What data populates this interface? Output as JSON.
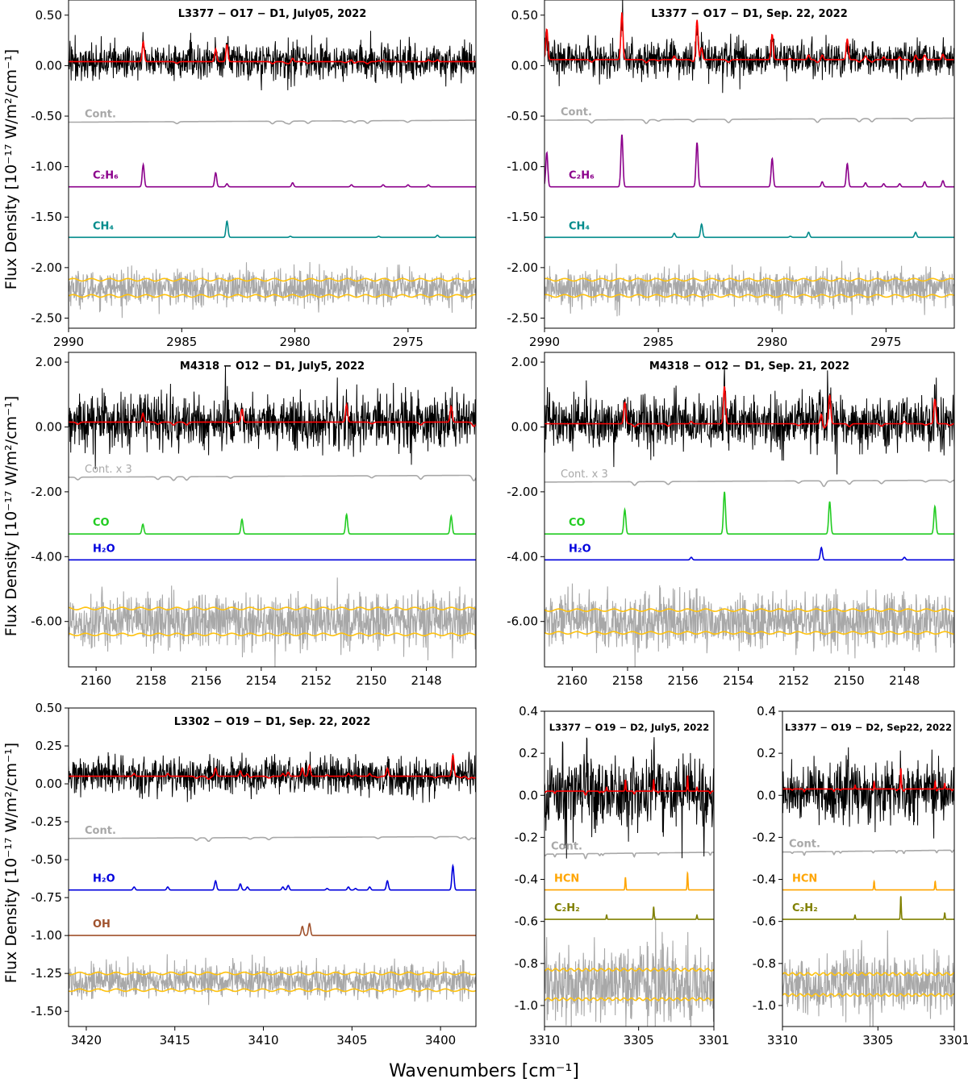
{
  "figure": {
    "xlabel": "Wavenumbers [cm⁻¹]",
    "ylabel": "Flux Density [10⁻¹⁷ W/m²/cm⁻¹]"
  },
  "colors": {
    "data": "#000000",
    "model": "#ff0000",
    "continuum": "#a8a8a8",
    "residual": "#a8a8a8",
    "sigma": "#ffc20e",
    "C2H6": "#8b008b",
    "CH4": "#008b8b",
    "CO": "#22cc22",
    "H2O": "#0000dd",
    "OH": "#a0522d",
    "HCN": "#ffa500",
    "C2H2": "#808000"
  },
  "chart_data": [
    {
      "type": "line",
      "title": "L3377 − O17 − D1, July05, 2022",
      "xlim": [
        2990,
        2972
      ],
      "ylim": [
        -2.6,
        0.65
      ],
      "xticks": [
        2990,
        2985,
        2980,
        2975
      ],
      "xtick_labels": [
        "2990",
        "2985",
        "2980",
        "2975"
      ],
      "yticks": [
        0.5,
        0.0,
        -0.5,
        -1.0,
        -1.5,
        -2.0,
        -2.5
      ],
      "ytick_labels": [
        "0.50",
        "0.00",
        "-0.50",
        "-1.00",
        "-1.50",
        "-2.00",
        "-2.50"
      ],
      "show_ylabel": true,
      "data": {
        "offset": 0.04,
        "noise": 0.09
      },
      "model": {
        "offset": 0.04
      },
      "continuum": {
        "label": "Cont.",
        "offset": -0.56
      },
      "residual": {
        "offset": -2.2,
        "noise": 0.085,
        "sigma_upper": -2.12,
        "sigma_lower": -2.28
      },
      "components": [
        {
          "name": "C2H6",
          "label": "C₂H₆",
          "color_key": "C2H6",
          "offset": -1.2,
          "lines": [
            [
              2986.7,
              0.22
            ],
            [
              2983.5,
              0.14
            ],
            [
              2983.0,
              0.03
            ],
            [
              2980.1,
              0.04
            ],
            [
              2977.5,
              0.02
            ],
            [
              2976.1,
              0.02
            ],
            [
              2975.0,
              0.02
            ],
            [
              2974.1,
              0.02
            ]
          ]
        },
        {
          "name": "CH4",
          "label": "CH₄",
          "color_key": "CH4",
          "offset": -1.7,
          "lines": [
            [
              2983.0,
              0.16
            ],
            [
              2980.2,
              0.01
            ],
            [
              2976.3,
              0.01
            ],
            [
              2973.7,
              0.02
            ]
          ]
        }
      ]
    },
    {
      "type": "line",
      "title": "L3377 − O17 − D1, Sep. 22, 2022",
      "xlim": [
        2990,
        2972
      ],
      "ylim": [
        -2.6,
        0.65
      ],
      "xticks": [
        2990,
        2985,
        2980,
        2975
      ],
      "xtick_labels": [
        "2990",
        "2985",
        "2980",
        "2975"
      ],
      "yticks": [
        0.5,
        0.0,
        -0.5,
        -1.0,
        -1.5,
        -2.0,
        -2.5
      ],
      "ytick_labels": [
        "0.50",
        "0.00",
        "-0.50",
        "-1.00",
        "-1.50",
        "-2.00",
        "-2.50"
      ],
      "show_ylabel": false,
      "data": {
        "offset": 0.06,
        "noise": 0.09
      },
      "model": {
        "offset": 0.06
      },
      "continuum": {
        "label": "Cont.",
        "offset": -0.54
      },
      "residual": {
        "offset": -2.2,
        "noise": 0.085,
        "sigma_upper": -2.12,
        "sigma_lower": -2.28
      },
      "components": [
        {
          "name": "C2H6",
          "label": "C₂H₆",
          "color_key": "C2H6",
          "offset": -1.2,
          "lines": [
            [
              2989.9,
              0.34
            ],
            [
              2986.6,
              0.52
            ],
            [
              2983.3,
              0.44
            ],
            [
              2980.0,
              0.28
            ],
            [
              2977.8,
              0.05
            ],
            [
              2976.7,
              0.23
            ],
            [
              2975.9,
              0.04
            ],
            [
              2975.1,
              0.03
            ],
            [
              2974.4,
              0.03
            ],
            [
              2973.3,
              0.05
            ],
            [
              2972.5,
              0.06
            ]
          ]
        },
        {
          "name": "CH4",
          "label": "CH₄",
          "color_key": "CH4",
          "offset": -1.7,
          "lines": [
            [
              2984.3,
              0.04
            ],
            [
              2983.1,
              0.13
            ],
            [
              2979.2,
              0.01
            ],
            [
              2978.4,
              0.05
            ],
            [
              2973.7,
              0.05
            ]
          ]
        }
      ]
    },
    {
      "type": "line",
      "title": "M4318 − O12 − D1, July5, 2022",
      "xlim": [
        2161,
        2146.2
      ],
      "ylim": [
        -7.4,
        2.3
      ],
      "xticks": [
        2160,
        2158,
        2156,
        2154,
        2152,
        2150,
        2148
      ],
      "xtick_labels": [
        "2160",
        "2158",
        "2156",
        "2154",
        "2152",
        "2150",
        "2148"
      ],
      "yticks": [
        2.0,
        0.0,
        -2.0,
        -4.0,
        -6.0
      ],
      "ytick_labels": [
        "2.00",
        "0.00",
        "-2.00",
        "-4.00",
        "-6.00"
      ],
      "show_ylabel": true,
      "data": {
        "offset": 0.15,
        "noise": 0.42
      },
      "model": {
        "offset": 0.15
      },
      "continuum": {
        "label": "Cont. x 3",
        "offset": -1.55
      },
      "residual": {
        "offset": -6.0,
        "noise": 0.42,
        "sigma_upper": -5.6,
        "sigma_lower": -6.4
      },
      "components": [
        {
          "name": "CO",
          "label": "CO",
          "color_key": "CO",
          "offset": -3.3,
          "lines": [
            [
              2158.3,
              0.3
            ],
            [
              2154.7,
              0.45
            ],
            [
              2150.9,
              0.6
            ],
            [
              2147.1,
              0.55
            ]
          ]
        },
        {
          "name": "H2O",
          "label": "H₂O",
          "color_key": "H2O",
          "offset": -4.1,
          "lines": []
        }
      ]
    },
    {
      "type": "line",
      "title": "M4318 − O12 − D1, Sep. 21, 2022",
      "xlim": [
        2161,
        2146.2
      ],
      "ylim": [
        -7.4,
        2.3
      ],
      "xticks": [
        2160,
        2158,
        2156,
        2154,
        2152,
        2150,
        2148
      ],
      "xtick_labels": [
        "2160",
        "2158",
        "2156",
        "2154",
        "2152",
        "2150",
        "2148"
      ],
      "yticks": [
        2.0,
        0.0,
        -2.0,
        -4.0,
        -6.0
      ],
      "ytick_labels": [
        "2.00",
        "0.00",
        "-2.00",
        "-4.00",
        "-6.00"
      ],
      "show_ylabel": false,
      "data": {
        "offset": 0.1,
        "noise": 0.42
      },
      "model": {
        "offset": 0.1
      },
      "continuum": {
        "label": "Cont. x 3",
        "offset": -1.7
      },
      "residual": {
        "offset": -6.0,
        "noise": 0.42,
        "sigma_upper": -5.65,
        "sigma_lower": -6.35
      },
      "components": [
        {
          "name": "CO",
          "label": "CO",
          "color_key": "CO",
          "offset": -3.3,
          "lines": [
            [
              2158.1,
              0.75
            ],
            [
              2154.5,
              1.3
            ],
            [
              2150.7,
              1.0
            ],
            [
              2146.9,
              0.85
            ]
          ]
        },
        {
          "name": "H2O",
          "label": "H₂O",
          "color_key": "H2O",
          "offset": -4.1,
          "lines": [
            [
              2155.7,
              0.08
            ],
            [
              2151.0,
              0.38
            ],
            [
              2148.0,
              0.08
            ]
          ]
        }
      ]
    },
    {
      "type": "line",
      "title": "L3302 − O19 − D1, Sep. 22, 2022",
      "xlim": [
        3421,
        3398
      ],
      "ylim": [
        -1.6,
        0.5
      ],
      "xticks": [
        3420,
        3415,
        3410,
        3405,
        3400
      ],
      "xtick_labels": [
        "3420",
        "3415",
        "3410",
        "3405",
        "3400"
      ],
      "yticks": [
        0.5,
        0.25,
        0.0,
        -0.25,
        -0.5,
        -0.75,
        -1.0,
        -1.25,
        -1.5
      ],
      "ytick_labels": [
        "0.50",
        "0.25",
        "0.00",
        "-0.25",
        "-0.50",
        "-0.75",
        "-1.00",
        "-1.25",
        "-1.50"
      ],
      "show_ylabel": true,
      "data": {
        "offset": 0.05,
        "noise": 0.06
      },
      "model": {
        "offset": 0.05
      },
      "continuum": {
        "label": "Cont.",
        "offset": -0.36
      },
      "residual": {
        "offset": -1.3,
        "noise": 0.055,
        "sigma_upper": -1.25,
        "sigma_lower": -1.36
      },
      "components": [
        {
          "name": "H2O",
          "label": "H₂O",
          "color_key": "H2O",
          "offset": -0.7,
          "lines": [
            [
              3417.3,
              0.02
            ],
            [
              3415.4,
              0.02
            ],
            [
              3412.7,
              0.06
            ],
            [
              3411.3,
              0.04
            ],
            [
              3410.9,
              0.02
            ],
            [
              3408.9,
              0.02
            ],
            [
              3408.6,
              0.03
            ],
            [
              3406.4,
              0.01
            ],
            [
              3405.2,
              0.02
            ],
            [
              3404.8,
              0.01
            ],
            [
              3404.0,
              0.02
            ],
            [
              3403.0,
              0.06
            ],
            [
              3399.3,
              0.16
            ]
          ]
        },
        {
          "name": "OH",
          "label": "OH",
          "color_key": "OH",
          "offset": -1.0,
          "lines": [
            [
              3407.8,
              0.06
            ],
            [
              3407.4,
              0.08
            ]
          ]
        }
      ]
    },
    {
      "type": "line",
      "title": "L3377 − O19 − D2, July5, 2022",
      "xlim": [
        3310,
        3301
      ],
      "ylim": [
        -1.1,
        0.4
      ],
      "xticks": [
        3310,
        3305,
        3301
      ],
      "xtick_labels": [
        "3310",
        "3305",
        "3301"
      ],
      "yticks": [
        0.4,
        0.2,
        0.0,
        -0.2,
        -0.4,
        -0.6,
        -0.8,
        -1.0
      ],
      "ytick_labels": [
        "0.4",
        "0.2",
        "0.0",
        "-0.2",
        "-0.4",
        "-0.6",
        "-0.8",
        "-1.0"
      ],
      "show_ylabel": false,
      "data": {
        "offset": 0.02,
        "noise": 0.09
      },
      "model": {
        "offset": 0.02
      },
      "continuum": {
        "label": "Cont.",
        "offset": -0.28
      },
      "residual": {
        "offset": -0.9,
        "noise": 0.09,
        "sigma_upper": -0.83,
        "sigma_lower": -0.97
      },
      "components": [
        {
          "name": "HCN",
          "label": "HCN",
          "color_key": "HCN",
          "offset": -0.45,
          "lines": [
            [
              3305.7,
              0.06
            ],
            [
              3302.4,
              0.08
            ]
          ]
        },
        {
          "name": "C2H2",
          "label": "C₂H₂",
          "color_key": "C2H2",
          "offset": -0.59,
          "lines": [
            [
              3306.7,
              0.02
            ],
            [
              3304.2,
              0.06
            ],
            [
              3301.9,
              0.02
            ]
          ]
        }
      ]
    },
    {
      "type": "line",
      "title": "L3377 − O19 − D2, Sep22, 2022",
      "xlim": [
        3310,
        3301
      ],
      "ylim": [
        -1.1,
        0.4
      ],
      "xticks": [
        3310,
        3305,
        3301
      ],
      "xtick_labels": [
        "3310",
        "3305",
        "3301"
      ],
      "yticks": [
        0.4,
        0.2,
        0.0,
        -0.2,
        -0.4,
        -0.6,
        -0.8,
        -1.0
      ],
      "ytick_labels": [
        "0.4",
        "0.2",
        "0.0",
        "-0.2",
        "-0.4",
        "-0.6",
        "-0.8",
        "-1.0"
      ],
      "show_ylabel": false,
      "data": {
        "offset": 0.02,
        "noise": 0.07
      },
      "model": {
        "offset": 0.03
      },
      "continuum": {
        "label": "Cont.",
        "offset": -0.27
      },
      "residual": {
        "offset": -0.9,
        "noise": 0.065,
        "sigma_upper": -0.85,
        "sigma_lower": -0.95
      },
      "components": [
        {
          "name": "HCN",
          "label": "HCN",
          "color_key": "HCN",
          "offset": -0.45,
          "lines": [
            [
              3305.2,
              0.04
            ],
            [
              3302.0,
              0.04
            ]
          ]
        },
        {
          "name": "C2H2",
          "label": "C₂H₂",
          "color_key": "C2H2",
          "offset": -0.59,
          "lines": [
            [
              3306.2,
              0.02
            ],
            [
              3303.8,
              0.11
            ],
            [
              3301.5,
              0.03
            ]
          ]
        }
      ]
    }
  ]
}
